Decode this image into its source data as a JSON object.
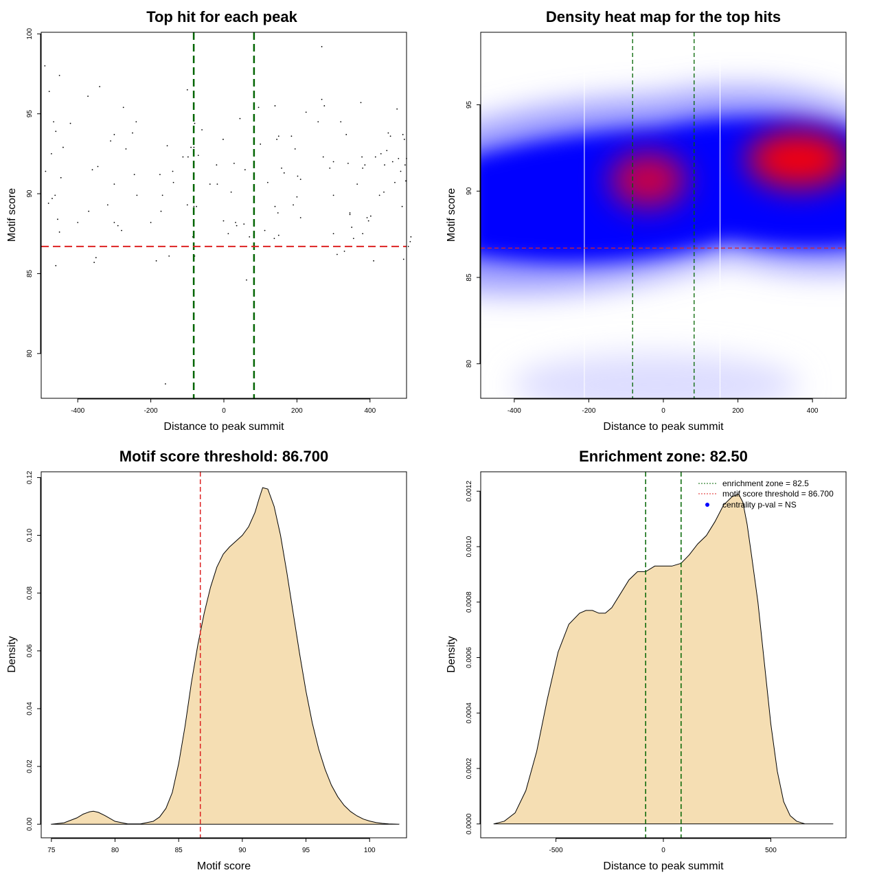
{
  "chart_data": [
    {
      "id": "scatter",
      "type": "scatter",
      "title": "Top hit for each peak",
      "xlabel": "Distance to peak summit",
      "ylabel": "Motif score",
      "xlim": [
        -500,
        500
      ],
      "ylim": [
        77.2,
        100.1
      ],
      "xticks": [
        -400,
        -200,
        0,
        200,
        400
      ],
      "yticks": [
        80,
        85,
        90,
        95,
        100
      ],
      "xtick_labels": [
        "-400",
        "-200",
        "0",
        "200",
        "400"
      ],
      "ytick_labels": [
        "80",
        "85",
        "90",
        "95",
        "100"
      ],
      "vlines": [
        -82.5,
        82.5
      ],
      "hline": 86.7,
      "points": [
        [
          -490,
          98.0
        ],
        [
          -478,
          96.4
        ],
        [
          -466,
          94.5
        ],
        [
          -460,
          93.9
        ],
        [
          -450,
          97.4
        ],
        [
          -472,
          92.5
        ],
        [
          -440,
          92.9
        ],
        [
          -420,
          94.4
        ],
        [
          -400,
          88.2
        ],
        [
          -470,
          89.7
        ],
        [
          -480,
          89.4
        ],
        [
          -462,
          89.9
        ],
        [
          -455,
          88.4
        ],
        [
          -450,
          87.6
        ],
        [
          -460,
          85.5
        ],
        [
          -488,
          91.4
        ],
        [
          -446,
          91.0
        ],
        [
          -372,
          96.1
        ],
        [
          -340,
          96.7
        ],
        [
          -360,
          91.5
        ],
        [
          -345,
          91.7
        ],
        [
          -370,
          88.9
        ],
        [
          -350,
          86.0
        ],
        [
          -355,
          85.7
        ],
        [
          -310,
          93.3
        ],
        [
          -300,
          93.7
        ],
        [
          -275,
          95.4
        ],
        [
          -250,
          93.8
        ],
        [
          -240,
          94.5
        ],
        [
          -268,
          92.8
        ],
        [
          -300,
          90.6
        ],
        [
          -318,
          89.3
        ],
        [
          -300,
          88.2
        ],
        [
          -290,
          88.0
        ],
        [
          -280,
          87.7
        ],
        [
          -245,
          91.2
        ],
        [
          -238,
          89.9
        ],
        [
          -200,
          88.2
        ],
        [
          -185,
          85.8
        ],
        [
          -175,
          91.2
        ],
        [
          -172,
          88.9
        ],
        [
          -168,
          89.9
        ],
        [
          -155,
          93.0
        ],
        [
          -140,
          91.4
        ],
        [
          -138,
          90.7
        ],
        [
          -150,
          86.1
        ],
        [
          -160,
          78.1
        ],
        [
          -100,
          96.5
        ],
        [
          -90,
          92.9
        ],
        [
          -82,
          92.9
        ],
        [
          -80,
          94.4
        ],
        [
          -60,
          94.0
        ],
        [
          -70,
          92.4
        ],
        [
          -112,
          92.3
        ],
        [
          -98,
          92.3
        ],
        [
          -100,
          89.3
        ],
        [
          -82,
          89.2
        ],
        [
          -75,
          89.2
        ],
        [
          -85,
          87.3
        ],
        [
          -80,
          86.1
        ],
        [
          -38,
          90.6
        ],
        [
          -20,
          91.8
        ],
        [
          -18,
          90.6
        ],
        [
          -2,
          93.4
        ],
        [
          -1,
          88.3
        ],
        [
          12,
          87.5
        ],
        [
          20,
          90.1
        ],
        [
          28,
          91.9
        ],
        [
          32,
          88.2
        ],
        [
          35,
          88.0
        ],
        [
          44,
          94.7
        ],
        [
          58,
          91.5
        ],
        [
          70,
          87.3
        ],
        [
          82,
          87.4
        ],
        [
          95,
          95.4
        ],
        [
          100,
          93.1
        ],
        [
          120,
          90.7
        ],
        [
          112,
          87.7
        ],
        [
          140,
          95.5
        ],
        [
          145,
          93.4
        ],
        [
          150,
          93.6
        ],
        [
          158,
          91.6
        ],
        [
          165,
          91.3
        ],
        [
          140,
          89.2
        ],
        [
          138,
          87.2
        ],
        [
          150,
          87.4
        ],
        [
          148,
          88.8
        ],
        [
          185,
          93.6
        ],
        [
          195,
          92.8
        ],
        [
          202,
          91.1
        ],
        [
          210,
          90.9
        ],
        [
          210,
          88.5
        ],
        [
          190,
          89.3
        ],
        [
          200,
          89.8
        ],
        [
          225,
          95.1
        ],
        [
          258,
          94.5
        ],
        [
          268,
          99.2
        ],
        [
          268,
          95.9
        ],
        [
          275,
          95.5
        ],
        [
          272,
          92.3
        ],
        [
          290,
          91.6
        ],
        [
          300,
          87.5
        ],
        [
          310,
          86.2
        ],
        [
          300,
          92.0
        ],
        [
          320,
          94.5
        ],
        [
          335,
          93.7
        ],
        [
          340,
          91.9
        ],
        [
          330,
          86.4
        ],
        [
          345,
          88.8
        ],
        [
          345,
          88.7
        ],
        [
          350,
          87.9
        ],
        [
          355,
          87.2
        ],
        [
          365,
          90.6
        ],
        [
          375,
          95.7
        ],
        [
          378,
          92.3
        ],
        [
          380,
          91.6
        ],
        [
          386,
          91.8
        ],
        [
          392,
          88.5
        ],
        [
          396,
          88.3
        ],
        [
          402,
          88.6
        ],
        [
          408,
          86.7
        ],
        [
          410,
          85.8
        ],
        [
          415,
          92.3
        ],
        [
          426,
          89.9
        ],
        [
          430,
          92.5
        ],
        [
          438,
          90.1
        ],
        [
          440,
          91.8
        ],
        [
          446,
          92.7
        ],
        [
          450,
          93.8
        ],
        [
          456,
          93.6
        ],
        [
          462,
          92.0
        ],
        [
          468,
          90.7
        ],
        [
          474,
          95.3
        ],
        [
          478,
          92.2
        ],
        [
          484,
          91.4
        ],
        [
          488,
          89.2
        ],
        [
          490,
          93.7
        ],
        [
          492,
          85.9
        ],
        [
          494,
          93.4
        ],
        [
          496,
          91.8
        ],
        [
          498,
          90.8
        ],
        [
          500,
          92.2
        ],
        [
          505,
          86.7
        ],
        [
          510,
          87.0
        ],
        [
          512,
          87.3
        ],
        [
          300,
          89.9
        ],
        [
          380,
          87.5
        ],
        [
          55,
          88.1
        ],
        [
          62,
          84.6
        ]
      ]
    },
    {
      "id": "heatmap",
      "type": "heatmap",
      "title": "Density heat map for the top hits",
      "xlabel": "Distance to peak summit",
      "ylabel": "Motif score",
      "xlim": [
        -490,
        490
      ],
      "ylim": [
        78.0,
        99.2
      ],
      "xticks": [
        -400,
        -200,
        0,
        200,
        400
      ],
      "yticks": [
        80,
        85,
        90,
        95
      ],
      "xtick_labels": [
        "-400",
        "-200",
        "0",
        "200",
        "400"
      ],
      "ytick_labels": [
        "80",
        "85",
        "90",
        "95"
      ],
      "vlines": [
        -82.5,
        82.5
      ],
      "white_lines": [
        -212,
        152
      ],
      "hline": 86.7,
      "hotspots": [
        {
          "x": 360,
          "y": 91.8,
          "intensity": "high"
        },
        {
          "x": -40,
          "y": 90.6,
          "intensity": "medium"
        }
      ]
    },
    {
      "id": "score-density",
      "type": "area",
      "title": "Motif score threshold: 86.700",
      "xlabel": "Motif score",
      "ylabel": "Density",
      "xlim": [
        74.2,
        102.9
      ],
      "ylim": [
        -0.0047,
        0.122
      ],
      "xticks": [
        75,
        80,
        85,
        90,
        95,
        100
      ],
      "yticks": [
        0.0,
        0.02,
        0.04,
        0.06,
        0.08,
        0.1,
        0.12
      ],
      "xtick_labels": [
        "75",
        "80",
        "85",
        "90",
        "95",
        "100"
      ],
      "ytick_labels": [
        "0.00",
        "0.02",
        "0.04",
        "0.06",
        "0.08",
        "0.10",
        "0.12"
      ],
      "vline": 86.7,
      "x": [
        75,
        76,
        77,
        77.5,
        78,
        78.3,
        78.7,
        79.2,
        80,
        81,
        82,
        83,
        83.5,
        84,
        84.5,
        85,
        85.5,
        86,
        86.5,
        87,
        87.5,
        88,
        88.5,
        89,
        89.5,
        90,
        90.5,
        91,
        91.3,
        91.6,
        92,
        92.5,
        93,
        93.5,
        94,
        94.5,
        95,
        95.5,
        96,
        96.5,
        97,
        97.5,
        98,
        98.5,
        99,
        99.5,
        100,
        100.5,
        101,
        101.5,
        102.3
      ],
      "values": [
        0.0,
        0.0005,
        0.0022,
        0.0035,
        0.0043,
        0.0045,
        0.0041,
        0.003,
        0.001,
        0.0001,
        0.0001,
        0.001,
        0.0025,
        0.0055,
        0.011,
        0.021,
        0.034,
        0.049,
        0.062,
        0.073,
        0.082,
        0.089,
        0.0935,
        0.096,
        0.098,
        0.1,
        0.103,
        0.108,
        0.1125,
        0.1165,
        0.116,
        0.11,
        0.1,
        0.087,
        0.073,
        0.059,
        0.046,
        0.035,
        0.026,
        0.019,
        0.0135,
        0.0095,
        0.0065,
        0.0044,
        0.0029,
        0.0018,
        0.0011,
        0.0006,
        0.0003,
        0.0001,
        0.0
      ]
    },
    {
      "id": "distance-density",
      "type": "area",
      "title": "Enrichment zone: 82.50",
      "xlabel": "Distance to peak summit",
      "ylabel": "Density",
      "xlim": [
        -850,
        850
      ],
      "ylim": [
        -5e-05,
        0.00127
      ],
      "xticks": [
        -500,
        0,
        500
      ],
      "yticks": [
        0.0,
        0.0002,
        0.0004,
        0.0006,
        0.0008,
        0.001,
        0.0012
      ],
      "xtick_labels": [
        "-500",
        "0",
        "500"
      ],
      "ytick_labels": [
        "0.0000",
        "0.0002",
        "0.0004",
        "0.0006",
        "0.0008",
        "0.0010",
        "0.0012"
      ],
      "vlines": [
        -82.5,
        82.5
      ],
      "x": [
        -790,
        -740,
        -690,
        -640,
        -590,
        -540,
        -490,
        -440,
        -390,
        -360,
        -330,
        -300,
        -270,
        -240,
        -200,
        -160,
        -120,
        -82,
        -40,
        0,
        40,
        82,
        120,
        160,
        200,
        240,
        280,
        320,
        350,
        370,
        390,
        410,
        440,
        470,
        500,
        530,
        560,
        590,
        620,
        660,
        700,
        740,
        790
      ],
      "values": [
        0.0,
        1e-05,
        4e-05,
        0.00012,
        0.00026,
        0.00045,
        0.00062,
        0.00072,
        0.00076,
        0.00077,
        0.00077,
        0.00076,
        0.00076,
        0.00078,
        0.00083,
        0.00088,
        0.00091,
        0.00091,
        0.00093,
        0.00093,
        0.00093,
        0.00094,
        0.00097,
        0.00101,
        0.00104,
        0.00109,
        0.00115,
        0.00118,
        0.00119,
        0.00116,
        0.00108,
        0.00097,
        0.0008,
        0.00058,
        0.00036,
        0.00019,
        8e-05,
        3e-05,
        1e-05,
        0.0,
        0.0,
        0.0,
        0.0
      ],
      "legend": [
        {
          "label": "enrichment zone = 82.5",
          "kind": "dotted-line",
          "color": "#006400"
        },
        {
          "label": "motif score threshold = 86.700",
          "kind": "dotted-line",
          "color": "#dd2222"
        },
        {
          "label": "centrality p-val = NS",
          "kind": "point",
          "color": "#0000ff"
        }
      ]
    }
  ],
  "colors": {
    "fill": "#f5deb3",
    "green": "#006400",
    "red": "#dd2222",
    "heat_low": "#ffffff",
    "heat_mid": "#0000ff",
    "heat_high": "#ff0000"
  }
}
